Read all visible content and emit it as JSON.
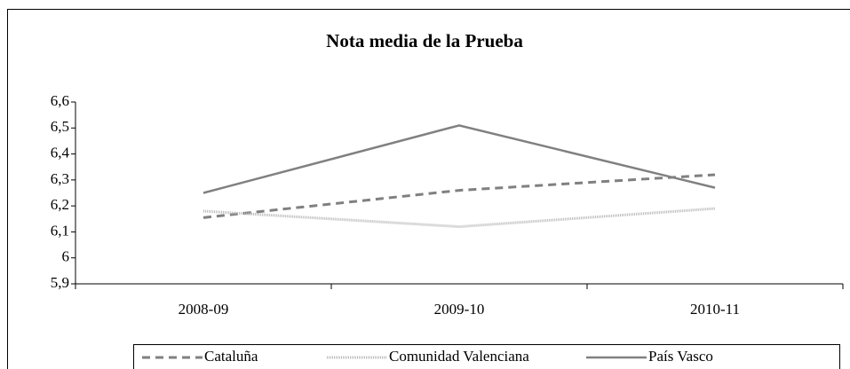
{
  "chart_data": {
    "type": "line",
    "title": "Nota media de la Prueba",
    "categories": [
      "2008-09",
      "2009-10",
      "2010-11"
    ],
    "series": [
      {
        "name": "Cataluña",
        "color": "#808080",
        "style": "dashed",
        "values": [
          6.155,
          6.26,
          6.32
        ]
      },
      {
        "name": "Comunidad Valenciana",
        "color": "#b8b8b8",
        "style": "dotted",
        "values": [
          6.18,
          6.12,
          6.19
        ]
      },
      {
        "name": "País Vasco",
        "color": "#808080",
        "style": "solid",
        "values": [
          6.25,
          6.51,
          6.27
        ]
      }
    ],
    "ylim": [
      5.9,
      6.6
    ],
    "yticks": [
      {
        "value": 5.9,
        "label": "5,9"
      },
      6,
      {
        "value": 6.1,
        "label": "6,1"
      },
      {
        "value": 6.2,
        "label": "6,2"
      },
      {
        "value": 6.3,
        "label": "6,3"
      },
      {
        "value": 6.4,
        "label": "6,4"
      },
      {
        "value": 6.5,
        "label": "6,5"
      },
      {
        "value": 6.6,
        "label": "6,6"
      }
    ],
    "legend": "bottom"
  }
}
